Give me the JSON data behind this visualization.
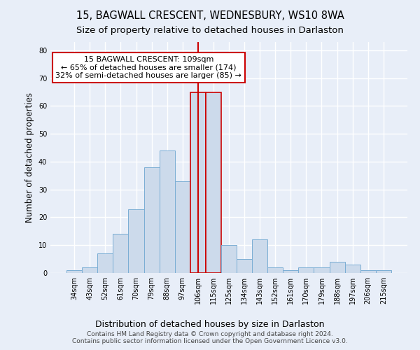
{
  "title": "15, BAGWALL CRESCENT, WEDNESBURY, WS10 8WA",
  "subtitle": "Size of property relative to detached houses in Darlaston",
  "xlabel": "Distribution of detached houses by size in Darlaston",
  "ylabel": "Number of detached properties",
  "categories": [
    "34sqm",
    "43sqm",
    "52sqm",
    "61sqm",
    "70sqm",
    "79sqm",
    "88sqm",
    "97sqm",
    "106sqm",
    "115sqm",
    "125sqm",
    "134sqm",
    "143sqm",
    "152sqm",
    "161sqm",
    "170sqm",
    "179sqm",
    "188sqm",
    "197sqm",
    "206sqm",
    "215sqm"
  ],
  "values": [
    1,
    2,
    7,
    14,
    23,
    38,
    44,
    33,
    65,
    65,
    10,
    5,
    12,
    2,
    1,
    2,
    2,
    4,
    3,
    1,
    1
  ],
  "bar_color": "#ccdaeb",
  "bar_edge_color": "#7aadd4",
  "highlight_indices": [
    8,
    9
  ],
  "highlight_edge_color": "#cc0000",
  "vline_index": 8.5,
  "vline_color": "#cc0000",
  "annotation_text": "15 BAGWALL CRESCENT: 109sqm\n← 65% of detached houses are smaller (174)\n32% of semi-detached houses are larger (85) →",
  "annotation_box_color": "#ffffff",
  "annotation_box_edge": "#cc0000",
  "ylim": [
    0,
    83
  ],
  "yticks": [
    0,
    10,
    20,
    30,
    40,
    50,
    60,
    70,
    80
  ],
  "footer_line1": "Contains HM Land Registry data © Crown copyright and database right 2024.",
  "footer_line2": "Contains public sector information licensed under the Open Government Licence v3.0.",
  "background_color": "#e8eef8",
  "plot_background": "#e8eef8",
  "grid_color": "#ffffff",
  "title_fontsize": 10.5,
  "subtitle_fontsize": 9.5,
  "tick_fontsize": 7,
  "ylabel_fontsize": 8.5,
  "xlabel_fontsize": 9,
  "annotation_fontsize": 8,
  "footer_fontsize": 6.5
}
